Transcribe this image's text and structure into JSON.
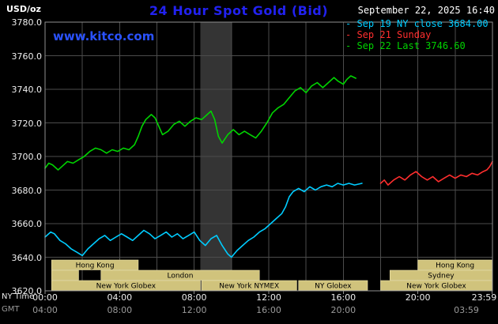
{
  "colors": {
    "background": "#000000",
    "title_blue": "#2222f0",
    "watermark_blue": "#2a52ff",
    "axis_text": "#ededed",
    "gmt_text": "#9a9a9a",
    "grid": "#4c4c4c",
    "plot_border": "#909090",
    "session_fill": "#d0c37c",
    "session_border": "#efe4ad",
    "session_text": "#000000",
    "highlight_band": "#343434"
  },
  "header": {
    "units_label": "USD/oz",
    "title": "24 Hour Spot Gold (Bid)",
    "datetime": "September 22, 2025 16:40",
    "watermark": "www.kitco.com"
  },
  "legend": [
    {
      "marker": "-",
      "label": "Sep 19 NY close 3684.00",
      "color": "#00ccff"
    },
    {
      "marker": "-",
      "label": "Sep 21 Sunday",
      "color": "#ff2e2e"
    },
    {
      "marker": "-",
      "label": "Sep 22 Last 3746.60",
      "color": "#00d400"
    }
  ],
  "axes": {
    "ny_time_label": "NY Time",
    "gmt_label": "GMT",
    "y_ticks": [
      {
        "v": 3780,
        "label": "3780.0"
      },
      {
        "v": 3760,
        "label": "3760.0"
      },
      {
        "v": 3740,
        "label": "3740.0"
      },
      {
        "v": 3720,
        "label": "3720.0"
      },
      {
        "v": 3700,
        "label": "3700.0"
      },
      {
        "v": 3680,
        "label": "3680.0"
      },
      {
        "v": 3660,
        "label": "3660.0"
      },
      {
        "v": 3640,
        "label": "3640.0"
      },
      {
        "v": 3620,
        "label": "3620.0"
      }
    ],
    "x_ticks_ny": [
      {
        "h": 0,
        "label": "00:00"
      },
      {
        "h": 4,
        "label": "04:00"
      },
      {
        "h": 8,
        "label": "08:00"
      },
      {
        "h": 12,
        "label": "12:00"
      },
      {
        "h": 16,
        "label": "16:00"
      },
      {
        "h": 20,
        "label": "20:00"
      },
      {
        "h": 23.983,
        "label": "23:59",
        "clamp": true
      }
    ],
    "x_ticks_gmt": [
      {
        "h": 0,
        "label": "04:00"
      },
      {
        "h": 4,
        "label": "08:00"
      },
      {
        "h": 8,
        "label": "12:00"
      },
      {
        "h": 12,
        "label": "16:00"
      },
      {
        "h": 16,
        "label": "20:00"
      },
      {
        "h": 22.6,
        "label": "03:59"
      }
    ]
  },
  "sessions": {
    "rows": [
      [
        {
          "start": 0.35,
          "end": 5.0,
          "label": "Hong Kong"
        },
        {
          "start": 20.0,
          "end": 23.98,
          "label": "Hong Kong"
        }
      ],
      [
        {
          "start": 0.35,
          "end": 1.8,
          "label": ""
        },
        {
          "start": 3.0,
          "end": 11.5,
          "label": "London"
        },
        {
          "start": 18.5,
          "end": 23.98,
          "label": "Sydney"
        }
      ],
      [
        {
          "start": 0.35,
          "end": 8.33,
          "label": "New York Globex"
        },
        {
          "start": 8.4,
          "end": 13.5,
          "label": "New York NYMEX"
        },
        {
          "start": 13.6,
          "end": 17.3,
          "label": "NY Globex"
        },
        {
          "start": 18.0,
          "end": 23.98,
          "label": "New York Globex"
        }
      ]
    ]
  },
  "chart_data": {
    "type": "line",
    "title": "24 Hour Spot Gold (Bid)",
    "ylabel": "USD/oz",
    "x_unit": "hours (NY time)",
    "x_range": [
      0,
      24
    ],
    "y_range": [
      3620,
      3780
    ],
    "y_grid_step": 20,
    "x_grid_step": 2,
    "grid": true,
    "legend_position": "top-right",
    "highlight_band": {
      "x_start": 8.33,
      "x_end": 10.0
    },
    "series": [
      {
        "id": "sep19",
        "name": "Sep 19 NY close 3684.00",
        "color": "#00ccff",
        "points": [
          [
            0,
            3652
          ],
          [
            0.3,
            3655
          ],
          [
            0.5,
            3654
          ],
          [
            0.8,
            3650
          ],
          [
            1.1,
            3648
          ],
          [
            1.4,
            3645
          ],
          [
            1.7,
            3643
          ],
          [
            2,
            3641
          ],
          [
            2.3,
            3645
          ],
          [
            2.6,
            3648
          ],
          [
            2.9,
            3651
          ],
          [
            3.2,
            3653
          ],
          [
            3.5,
            3650
          ],
          [
            3.8,
            3652
          ],
          [
            4.1,
            3654
          ],
          [
            4.4,
            3652
          ],
          [
            4.7,
            3650
          ],
          [
            5,
            3653
          ],
          [
            5.3,
            3656
          ],
          [
            5.6,
            3654
          ],
          [
            5.9,
            3651
          ],
          [
            6.2,
            3653
          ],
          [
            6.5,
            3655
          ],
          [
            6.8,
            3652
          ],
          [
            7.1,
            3654
          ],
          [
            7.4,
            3651
          ],
          [
            7.7,
            3653
          ],
          [
            8,
            3655
          ],
          [
            8.3,
            3650
          ],
          [
            8.6,
            3647
          ],
          [
            8.9,
            3651
          ],
          [
            9.2,
            3653
          ],
          [
            9.5,
            3647
          ],
          [
            9.8,
            3642
          ],
          [
            10,
            3640
          ],
          [
            10.3,
            3644
          ],
          [
            10.6,
            3647
          ],
          [
            10.9,
            3650
          ],
          [
            11.2,
            3652
          ],
          [
            11.5,
            3655
          ],
          [
            11.8,
            3657
          ],
          [
            12.1,
            3660
          ],
          [
            12.4,
            3663
          ],
          [
            12.7,
            3666
          ],
          [
            12.9,
            3670
          ],
          [
            13.1,
            3676
          ],
          [
            13.3,
            3679
          ],
          [
            13.6,
            3681
          ],
          [
            13.9,
            3679
          ],
          [
            14.2,
            3682
          ],
          [
            14.5,
            3680
          ],
          [
            14.8,
            3682
          ],
          [
            15.1,
            3683
          ],
          [
            15.4,
            3682
          ],
          [
            15.7,
            3684
          ],
          [
            16,
            3683
          ],
          [
            16.3,
            3684
          ],
          [
            16.6,
            3683
          ],
          [
            17,
            3684
          ]
        ]
      },
      {
        "id": "sep21",
        "name": "Sep 21 Sunday",
        "color": "#ff2e2e",
        "points": [
          [
            18,
            3684
          ],
          [
            18.2,
            3686
          ],
          [
            18.4,
            3683
          ],
          [
            18.7,
            3686
          ],
          [
            19,
            3688
          ],
          [
            19.3,
            3686
          ],
          [
            19.6,
            3689
          ],
          [
            19.9,
            3691
          ],
          [
            20.2,
            3688
          ],
          [
            20.5,
            3686
          ],
          [
            20.8,
            3688
          ],
          [
            21.1,
            3685
          ],
          [
            21.4,
            3687
          ],
          [
            21.7,
            3689
          ],
          [
            22,
            3687
          ],
          [
            22.3,
            3689
          ],
          [
            22.6,
            3688
          ],
          [
            22.9,
            3690
          ],
          [
            23.2,
            3689
          ],
          [
            23.5,
            3691
          ],
          [
            23.7,
            3692
          ],
          [
            23.85,
            3694
          ],
          [
            24,
            3697
          ]
        ]
      },
      {
        "id": "sep22",
        "name": "Sep 22 Last 3746.60",
        "color": "#00d400",
        "points": [
          [
            0,
            3693
          ],
          [
            0.2,
            3696
          ],
          [
            0.4,
            3695
          ],
          [
            0.7,
            3692
          ],
          [
            0.9,
            3694
          ],
          [
            1.2,
            3697
          ],
          [
            1.5,
            3696
          ],
          [
            1.8,
            3698
          ],
          [
            2.1,
            3700
          ],
          [
            2.4,
            3703
          ],
          [
            2.7,
            3705
          ],
          [
            3,
            3704
          ],
          [
            3.3,
            3702
          ],
          [
            3.6,
            3704
          ],
          [
            3.9,
            3703
          ],
          [
            4.2,
            3705
          ],
          [
            4.5,
            3704
          ],
          [
            4.8,
            3707
          ],
          [
            5,
            3712
          ],
          [
            5.2,
            3718
          ],
          [
            5.4,
            3722
          ],
          [
            5.7,
            3725
          ],
          [
            5.9,
            3723
          ],
          [
            6.1,
            3718
          ],
          [
            6.3,
            3713
          ],
          [
            6.6,
            3715
          ],
          [
            6.9,
            3719
          ],
          [
            7.2,
            3721
          ],
          [
            7.5,
            3718
          ],
          [
            7.8,
            3721
          ],
          [
            8.1,
            3723
          ],
          [
            8.4,
            3722
          ],
          [
            8.7,
            3725
          ],
          [
            8.9,
            3727
          ],
          [
            9.1,
            3722
          ],
          [
            9.3,
            3712
          ],
          [
            9.5,
            3708
          ],
          [
            9.8,
            3713
          ],
          [
            10.1,
            3716
          ],
          [
            10.4,
            3713
          ],
          [
            10.7,
            3715
          ],
          [
            11,
            3713
          ],
          [
            11.3,
            3711
          ],
          [
            11.6,
            3715
          ],
          [
            11.9,
            3720
          ],
          [
            12.2,
            3726
          ],
          [
            12.5,
            3729
          ],
          [
            12.8,
            3731
          ],
          [
            13.1,
            3735
          ],
          [
            13.4,
            3739
          ],
          [
            13.7,
            3741
          ],
          [
            14,
            3738
          ],
          [
            14.3,
            3742
          ],
          [
            14.6,
            3744
          ],
          [
            14.9,
            3741
          ],
          [
            15.2,
            3744
          ],
          [
            15.5,
            3747
          ],
          [
            15.7,
            3745
          ],
          [
            16,
            3743
          ],
          [
            16.2,
            3746
          ],
          [
            16.4,
            3748
          ],
          [
            16.67,
            3746.6
          ]
        ]
      }
    ]
  }
}
